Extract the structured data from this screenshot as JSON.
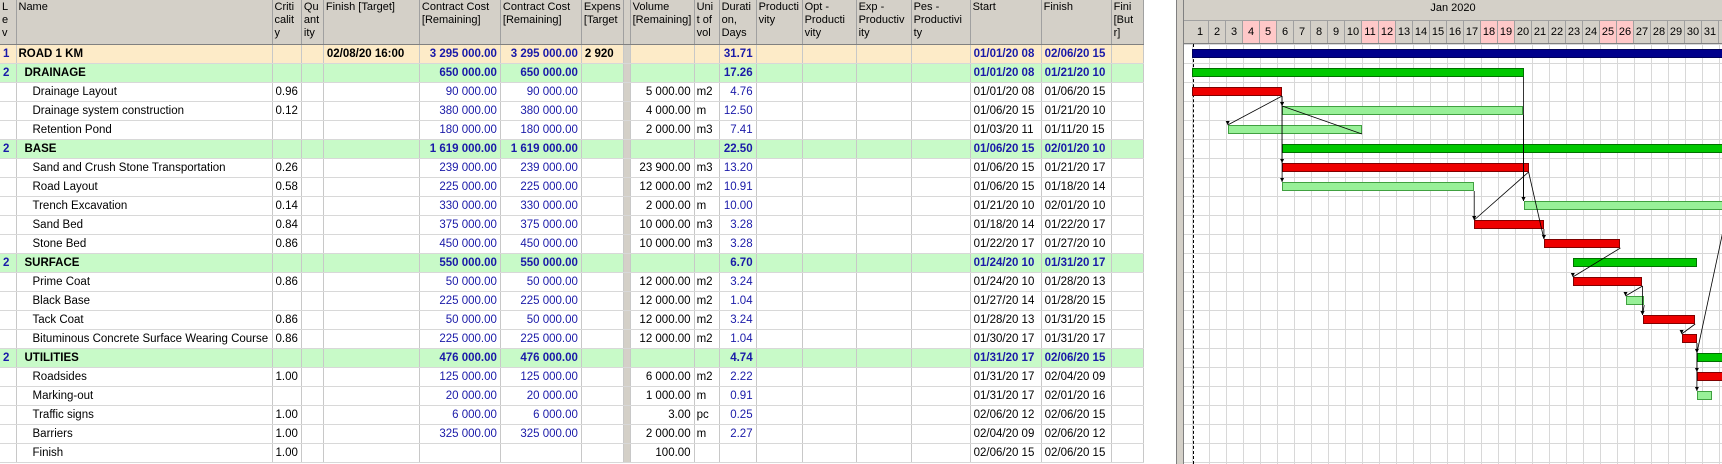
{
  "columns": {
    "lev": "L e v",
    "name": "Name",
    "criticality": "Criti calit y",
    "quantity": "Qu ant ity",
    "finish_target": "Finish [Target]",
    "contract_cost_remaining_1": "Contract Cost [Remaining]",
    "contract_cost_remaining_2": "Contract Cost [Remaining]",
    "expense_target": "Expens [Target",
    "volume": "Volume [Remaining]",
    "unit": "Uni t of vol",
    "duration": "Durati on, Days",
    "productivity": "Producti vity",
    "opt_productivity": "Opt -Producti vity",
    "exp_productivity": "Exp -Productiv ity",
    "pes_productivity": "Pes -Productivi ty",
    "start": "Start",
    "finish": "Finish",
    "finish_but": "Fini [But r]"
  },
  "rows": [
    {
      "type": "root",
      "lev": "1",
      "name": "ROAD 1 KM",
      "crit": "",
      "qty": "",
      "fin_target": "02/08/20  16:00",
      "cost1": "3 295 000.00",
      "cost2": "3 295 000.00",
      "expense": "2 920",
      "volume": "",
      "unit": "",
      "duration": "31.71",
      "start": "01/01/20  08",
      "finish": "02/06/20  15"
    },
    {
      "type": "group",
      "lev": "2",
      "name": "DRAINAGE",
      "crit": "",
      "qty": "",
      "fin_target": "",
      "cost1": "650 000.00",
      "cost2": "650 000.00",
      "expense": "",
      "volume": "",
      "unit": "",
      "duration": "17.26",
      "start": "01/01/20  08",
      "finish": "01/21/20  10"
    },
    {
      "type": "task",
      "lev": "",
      "name": "Drainage Layout",
      "crit": "0.96",
      "qty": "",
      "fin_target": "",
      "cost1": "90 000.00",
      "cost2": "90 000.00",
      "expense": "",
      "volume": "5 000.00",
      "unit": "m2",
      "duration": "4.76",
      "start": "01/01/20  08",
      "finish": "01/06/20  15"
    },
    {
      "type": "task",
      "lev": "",
      "name": "Drainage system construction",
      "crit": "0.12",
      "qty": "",
      "fin_target": "",
      "cost1": "380 000.00",
      "cost2": "380 000.00",
      "expense": "",
      "volume": "4 000.00",
      "unit": "m",
      "duration": "12.50",
      "start": "01/06/20  15",
      "finish": "01/21/20  10"
    },
    {
      "type": "task",
      "lev": "",
      "name": "Retention Pond",
      "crit": "",
      "qty": "",
      "fin_target": "",
      "cost1": "180 000.00",
      "cost2": "180 000.00",
      "expense": "",
      "volume": "2 000.00",
      "unit": "m3",
      "duration": "7.41",
      "start": "01/03/20  11",
      "finish": "01/11/20  15"
    },
    {
      "type": "group",
      "lev": "2",
      "name": "BASE",
      "crit": "",
      "qty": "",
      "fin_target": "",
      "cost1": "1 619 000.00",
      "cost2": "1 619 000.00",
      "expense": "",
      "volume": "",
      "unit": "",
      "duration": "22.50",
      "start": "01/06/20  15",
      "finish": "02/01/20  10"
    },
    {
      "type": "task",
      "lev": "",
      "name": "Sand and Crush Stone Transportation",
      "crit": "0.26",
      "qty": "",
      "fin_target": "",
      "cost1": "239 000.00",
      "cost2": "239 000.00",
      "expense": "",
      "volume": "23 900.00",
      "unit": "m3",
      "duration": "13.20",
      "start": "01/06/20  15",
      "finish": "01/21/20  17"
    },
    {
      "type": "task",
      "lev": "",
      "name": "Road Layout",
      "crit": "0.58",
      "qty": "",
      "fin_target": "",
      "cost1": "225 000.00",
      "cost2": "225 000.00",
      "expense": "",
      "volume": "12 000.00",
      "unit": "m2",
      "duration": "10.91",
      "start": "01/06/20  15",
      "finish": "01/18/20  14"
    },
    {
      "type": "task",
      "lev": "",
      "name": "Trench Excavation",
      "crit": "0.14",
      "qty": "",
      "fin_target": "",
      "cost1": "330 000.00",
      "cost2": "330 000.00",
      "expense": "",
      "volume": "2 000.00",
      "unit": "m",
      "duration": "10.00",
      "start": "01/21/20  10",
      "finish": "02/01/20  10"
    },
    {
      "type": "task",
      "lev": "",
      "name": "Sand Bed",
      "crit": "0.84",
      "qty": "",
      "fin_target": "",
      "cost1": "375 000.00",
      "cost2": "375 000.00",
      "expense": "",
      "volume": "10 000.00",
      "unit": "m3",
      "duration": "3.28",
      "start": "01/18/20  14",
      "finish": "01/22/20  17"
    },
    {
      "type": "task",
      "lev": "",
      "name": "Stone Bed",
      "crit": "0.86",
      "qty": "",
      "fin_target": "",
      "cost1": "450 000.00",
      "cost2": "450 000.00",
      "expense": "",
      "volume": "10 000.00",
      "unit": "m3",
      "duration": "3.28",
      "start": "01/22/20  17",
      "finish": "01/27/20  10"
    },
    {
      "type": "group",
      "lev": "2",
      "name": "SURFACE",
      "crit": "",
      "qty": "",
      "fin_target": "",
      "cost1": "550 000.00",
      "cost2": "550 000.00",
      "expense": "",
      "volume": "",
      "unit": "",
      "duration": "6.70",
      "start": "01/24/20  10",
      "finish": "01/31/20  17"
    },
    {
      "type": "task",
      "lev": "",
      "name": "Prime Coat",
      "crit": "0.86",
      "qty": "",
      "fin_target": "",
      "cost1": "50 000.00",
      "cost2": "50 000.00",
      "expense": "",
      "volume": "12 000.00",
      "unit": "m2",
      "duration": "3.24",
      "start": "01/24/20  10",
      "finish": "01/28/20  13"
    },
    {
      "type": "task",
      "lev": "",
      "name": "Black Base",
      "crit": "",
      "qty": "",
      "fin_target": "",
      "cost1": "225 000.00",
      "cost2": "225 000.00",
      "expense": "",
      "volume": "12 000.00",
      "unit": "m2",
      "duration": "1.04",
      "start": "01/27/20  14",
      "finish": "01/28/20  15"
    },
    {
      "type": "task",
      "lev": "",
      "name": "Tack Coat",
      "crit": "0.86",
      "qty": "",
      "fin_target": "",
      "cost1": "50 000.00",
      "cost2": "50 000.00",
      "expense": "",
      "volume": "12 000.00",
      "unit": "m2",
      "duration": "3.24",
      "start": "01/28/20  13",
      "finish": "01/31/20  15"
    },
    {
      "type": "task",
      "lev": "",
      "name": "Bituminous Concrete Surface Wearing Course",
      "crit": "0.86",
      "qty": "",
      "fin_target": "",
      "cost1": "225 000.00",
      "cost2": "225 000.00",
      "expense": "",
      "volume": "12 000.00",
      "unit": "m2",
      "duration": "1.04",
      "start": "01/30/20  17",
      "finish": "01/31/20  17"
    },
    {
      "type": "group",
      "lev": "2",
      "name": "UTILITIES",
      "crit": "",
      "qty": "",
      "fin_target": "",
      "cost1": "476 000.00",
      "cost2": "476 000.00",
      "expense": "",
      "volume": "",
      "unit": "",
      "duration": "4.74",
      "start": "01/31/20  17",
      "finish": "02/06/20  15"
    },
    {
      "type": "task",
      "lev": "",
      "name": "Roadsides",
      "crit": "1.00",
      "qty": "",
      "fin_target": "",
      "cost1": "125 000.00",
      "cost2": "125 000.00",
      "expense": "",
      "volume": "6 000.00",
      "unit": "m2",
      "duration": "2.22",
      "start": "01/31/20  17",
      "finish": "02/04/20  09"
    },
    {
      "type": "task",
      "lev": "",
      "name": "Marking-out",
      "crit": "",
      "qty": "",
      "fin_target": "",
      "cost1": "20 000.00",
      "cost2": "20 000.00",
      "expense": "",
      "volume": "1 000.00",
      "unit": "m",
      "duration": "0.91",
      "start": "01/31/20  17",
      "finish": "02/01/20  16"
    },
    {
      "type": "task",
      "lev": "",
      "name": "Traffic signs",
      "crit": "1.00",
      "qty": "",
      "fin_target": "",
      "cost1": "6 000.00",
      "cost2": "6 000.00",
      "expense": "",
      "volume": "3.00",
      "unit": "pc",
      "duration": "0.25",
      "start": "02/06/20  12",
      "finish": "02/06/20  15"
    },
    {
      "type": "task",
      "lev": "",
      "name": "Barriers",
      "crit": "1.00",
      "qty": "",
      "fin_target": "",
      "cost1": "325 000.00",
      "cost2": "325 000.00",
      "expense": "",
      "volume": "2 000.00",
      "unit": "m",
      "duration": "2.27",
      "start": "02/04/20  09",
      "finish": "02/06/20  12"
    },
    {
      "type": "task",
      "lev": "",
      "name": "Finish",
      "crit": "1.00",
      "qty": "",
      "fin_target": "",
      "cost1": "",
      "cost2": "",
      "expense": "",
      "volume": "100.00",
      "unit": "",
      "duration": "",
      "start": "02/06/20  15",
      "finish": "02/06/20  15"
    }
  ],
  "gantt": {
    "month_label": "Jan 2020",
    "days": [
      "1",
      "2",
      "3",
      "4",
      "5",
      "6",
      "7",
      "8",
      "9",
      "10",
      "11",
      "12",
      "13",
      "14",
      "15",
      "16",
      "17",
      "18",
      "19",
      "20",
      "21",
      "22",
      "23",
      "24",
      "25",
      "26",
      "27",
      "28",
      "29",
      "30",
      "31"
    ],
    "weekend_days": [
      "4",
      "5",
      "11",
      "12",
      "18",
      "19",
      "25",
      "26"
    ],
    "bar_colors": {
      "summary_root": "#00008b",
      "summary": "#00c800",
      "critical": "#ee0000",
      "noncritical": "#98f098"
    },
    "bars": [
      {
        "row": 0,
        "start_day": 1.0,
        "end_day": 32.5,
        "kind": "summary_root"
      },
      {
        "row": 1,
        "start_day": 1.0,
        "end_day": 20.5,
        "kind": "summary"
      },
      {
        "row": 2,
        "start_day": 1.0,
        "end_day": 6.3,
        "kind": "critical"
      },
      {
        "row": 3,
        "start_day": 6.3,
        "end_day": 20.5,
        "kind": "noncritical"
      },
      {
        "row": 4,
        "start_day": 3.1,
        "end_day": 11.0,
        "kind": "noncritical"
      },
      {
        "row": 5,
        "start_day": 6.3,
        "end_day": 32.5,
        "kind": "summary"
      },
      {
        "row": 6,
        "start_day": 6.3,
        "end_day": 20.8,
        "kind": "critical"
      },
      {
        "row": 7,
        "start_day": 6.3,
        "end_day": 17.6,
        "kind": "noncritical"
      },
      {
        "row": 8,
        "start_day": 20.5,
        "end_day": 32.5,
        "kind": "noncritical"
      },
      {
        "row": 9,
        "start_day": 17.6,
        "end_day": 21.7,
        "kind": "critical"
      },
      {
        "row": 10,
        "start_day": 21.7,
        "end_day": 26.2,
        "kind": "critical"
      },
      {
        "row": 11,
        "start_day": 23.4,
        "end_day": 30.7,
        "kind": "summary"
      },
      {
        "row": 12,
        "start_day": 23.4,
        "end_day": 27.5,
        "kind": "critical"
      },
      {
        "row": 13,
        "start_day": 26.5,
        "end_day": 27.6,
        "kind": "noncritical"
      },
      {
        "row": 14,
        "start_day": 27.5,
        "end_day": 30.6,
        "kind": "critical"
      },
      {
        "row": 15,
        "start_day": 29.8,
        "end_day": 30.7,
        "kind": "critical"
      },
      {
        "row": 16,
        "start_day": 30.7,
        "end_day": 32.5,
        "kind": "summary"
      },
      {
        "row": 17,
        "start_day": 30.7,
        "end_day": 32.5,
        "kind": "critical"
      },
      {
        "row": 18,
        "start_day": 30.7,
        "end_day": 31.6,
        "kind": "noncritical"
      }
    ],
    "links": [
      [
        2,
        3
      ],
      [
        2,
        4
      ],
      [
        2,
        6
      ],
      [
        2,
        7
      ],
      [
        4,
        3
      ],
      [
        7,
        9
      ],
      [
        9,
        10
      ],
      [
        6,
        10
      ],
      [
        3,
        8
      ],
      [
        10,
        12
      ],
      [
        12,
        14
      ],
      [
        14,
        15
      ],
      [
        13,
        14
      ],
      [
        15,
        17
      ],
      [
        15,
        18
      ],
      [
        12,
        13
      ],
      [
        1,
        8
      ],
      [
        8,
        16
      ],
      [
        6,
        9
      ]
    ]
  }
}
